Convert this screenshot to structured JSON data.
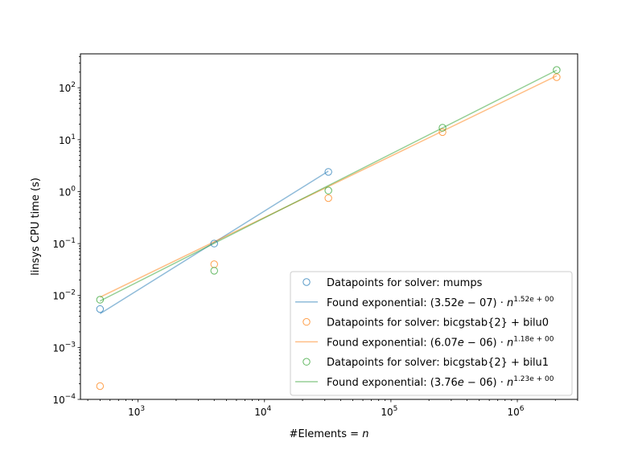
{
  "chart_data": {
    "type": "scatter",
    "xscale": "log",
    "yscale": "log",
    "xlim": [
      350,
      3000000
    ],
    "ylim": [
      0.0001,
      450
    ],
    "xlabel": "#Elements = n",
    "ylabel": "linsys CPU time (s)",
    "grid": false,
    "legend_placement": "lower right",
    "x_ticks": [
      {
        "value": 1000,
        "base": "10",
        "exp": "3"
      },
      {
        "value": 10000,
        "base": "10",
        "exp": "4"
      },
      {
        "value": 100000,
        "base": "10",
        "exp": "5"
      },
      {
        "value": 1000000,
        "base": "10",
        "exp": "6"
      }
    ],
    "y_ticks": [
      {
        "value": 0.0001,
        "base": "10",
        "exp": "−4"
      },
      {
        "value": 0.001,
        "base": "10",
        "exp": "−3"
      },
      {
        "value": 0.01,
        "base": "10",
        "exp": "−2"
      },
      {
        "value": 0.1,
        "base": "10",
        "exp": "−1"
      },
      {
        "value": 1,
        "base": "10",
        "exp": "0"
      },
      {
        "value": 10,
        "base": "10",
        "exp": "1"
      },
      {
        "value": 100,
        "base": "10",
        "exp": "2"
      }
    ],
    "series": [
      {
        "kind": "points",
        "name": "Datapoints for solver:  mumps",
        "color": "#1f77b4",
        "x": [
          500,
          4000,
          32000
        ],
        "y": [
          0.0055,
          0.1,
          2.4
        ]
      },
      {
        "kind": "fit",
        "name": "Found exponential: (3.52e−07)·n^1.52e+00",
        "legend_prefix": "Found exponential: (3.52",
        "legend_sub": "e",
        "legend_mid": " − 07) · ",
        "legend_n": "n",
        "legend_sup": "1.52e + 00",
        "color": "#1f77b4",
        "coef": 3.52e-07,
        "exponent": 1.52,
        "x": [
          500,
          32000
        ]
      },
      {
        "kind": "points",
        "name": "Datapoints for solver:  bicgstab{2} + bilu0",
        "color": "#ff7f0e",
        "x": [
          500,
          4000,
          32000,
          256000,
          2048000
        ],
        "y": [
          0.00018,
          0.04,
          0.75,
          14,
          160
        ]
      },
      {
        "kind": "fit",
        "name": "Found exponential: (6.07e−06)·n^1.18e+00",
        "legend_prefix": "Found exponential: (6.07",
        "legend_sub": "e",
        "legend_mid": " − 06) · ",
        "legend_n": "n",
        "legend_sup": "1.18e + 00",
        "color": "#ff7f0e",
        "coef": 6.07e-06,
        "exponent": 1.18,
        "x": [
          500,
          2048000
        ]
      },
      {
        "kind": "points",
        "name": "Datapoints for solver:  bicgstab{2} + bilu1",
        "color": "#2ca02c",
        "x": [
          500,
          4000,
          32000,
          256000,
          2048000
        ],
        "y": [
          0.0083,
          0.03,
          1.05,
          17,
          220
        ]
      },
      {
        "kind": "fit",
        "name": "Found exponential: (3.76e−06)·n^1.23e+00",
        "legend_prefix": "Found exponential: (3.76",
        "legend_sub": "e",
        "legend_mid": " − 06) · ",
        "legend_n": "n",
        "legend_sup": "1.23e + 00",
        "color": "#2ca02c",
        "coef": 3.76e-06,
        "exponent": 1.23,
        "x": [
          500,
          2048000
        ]
      }
    ]
  }
}
